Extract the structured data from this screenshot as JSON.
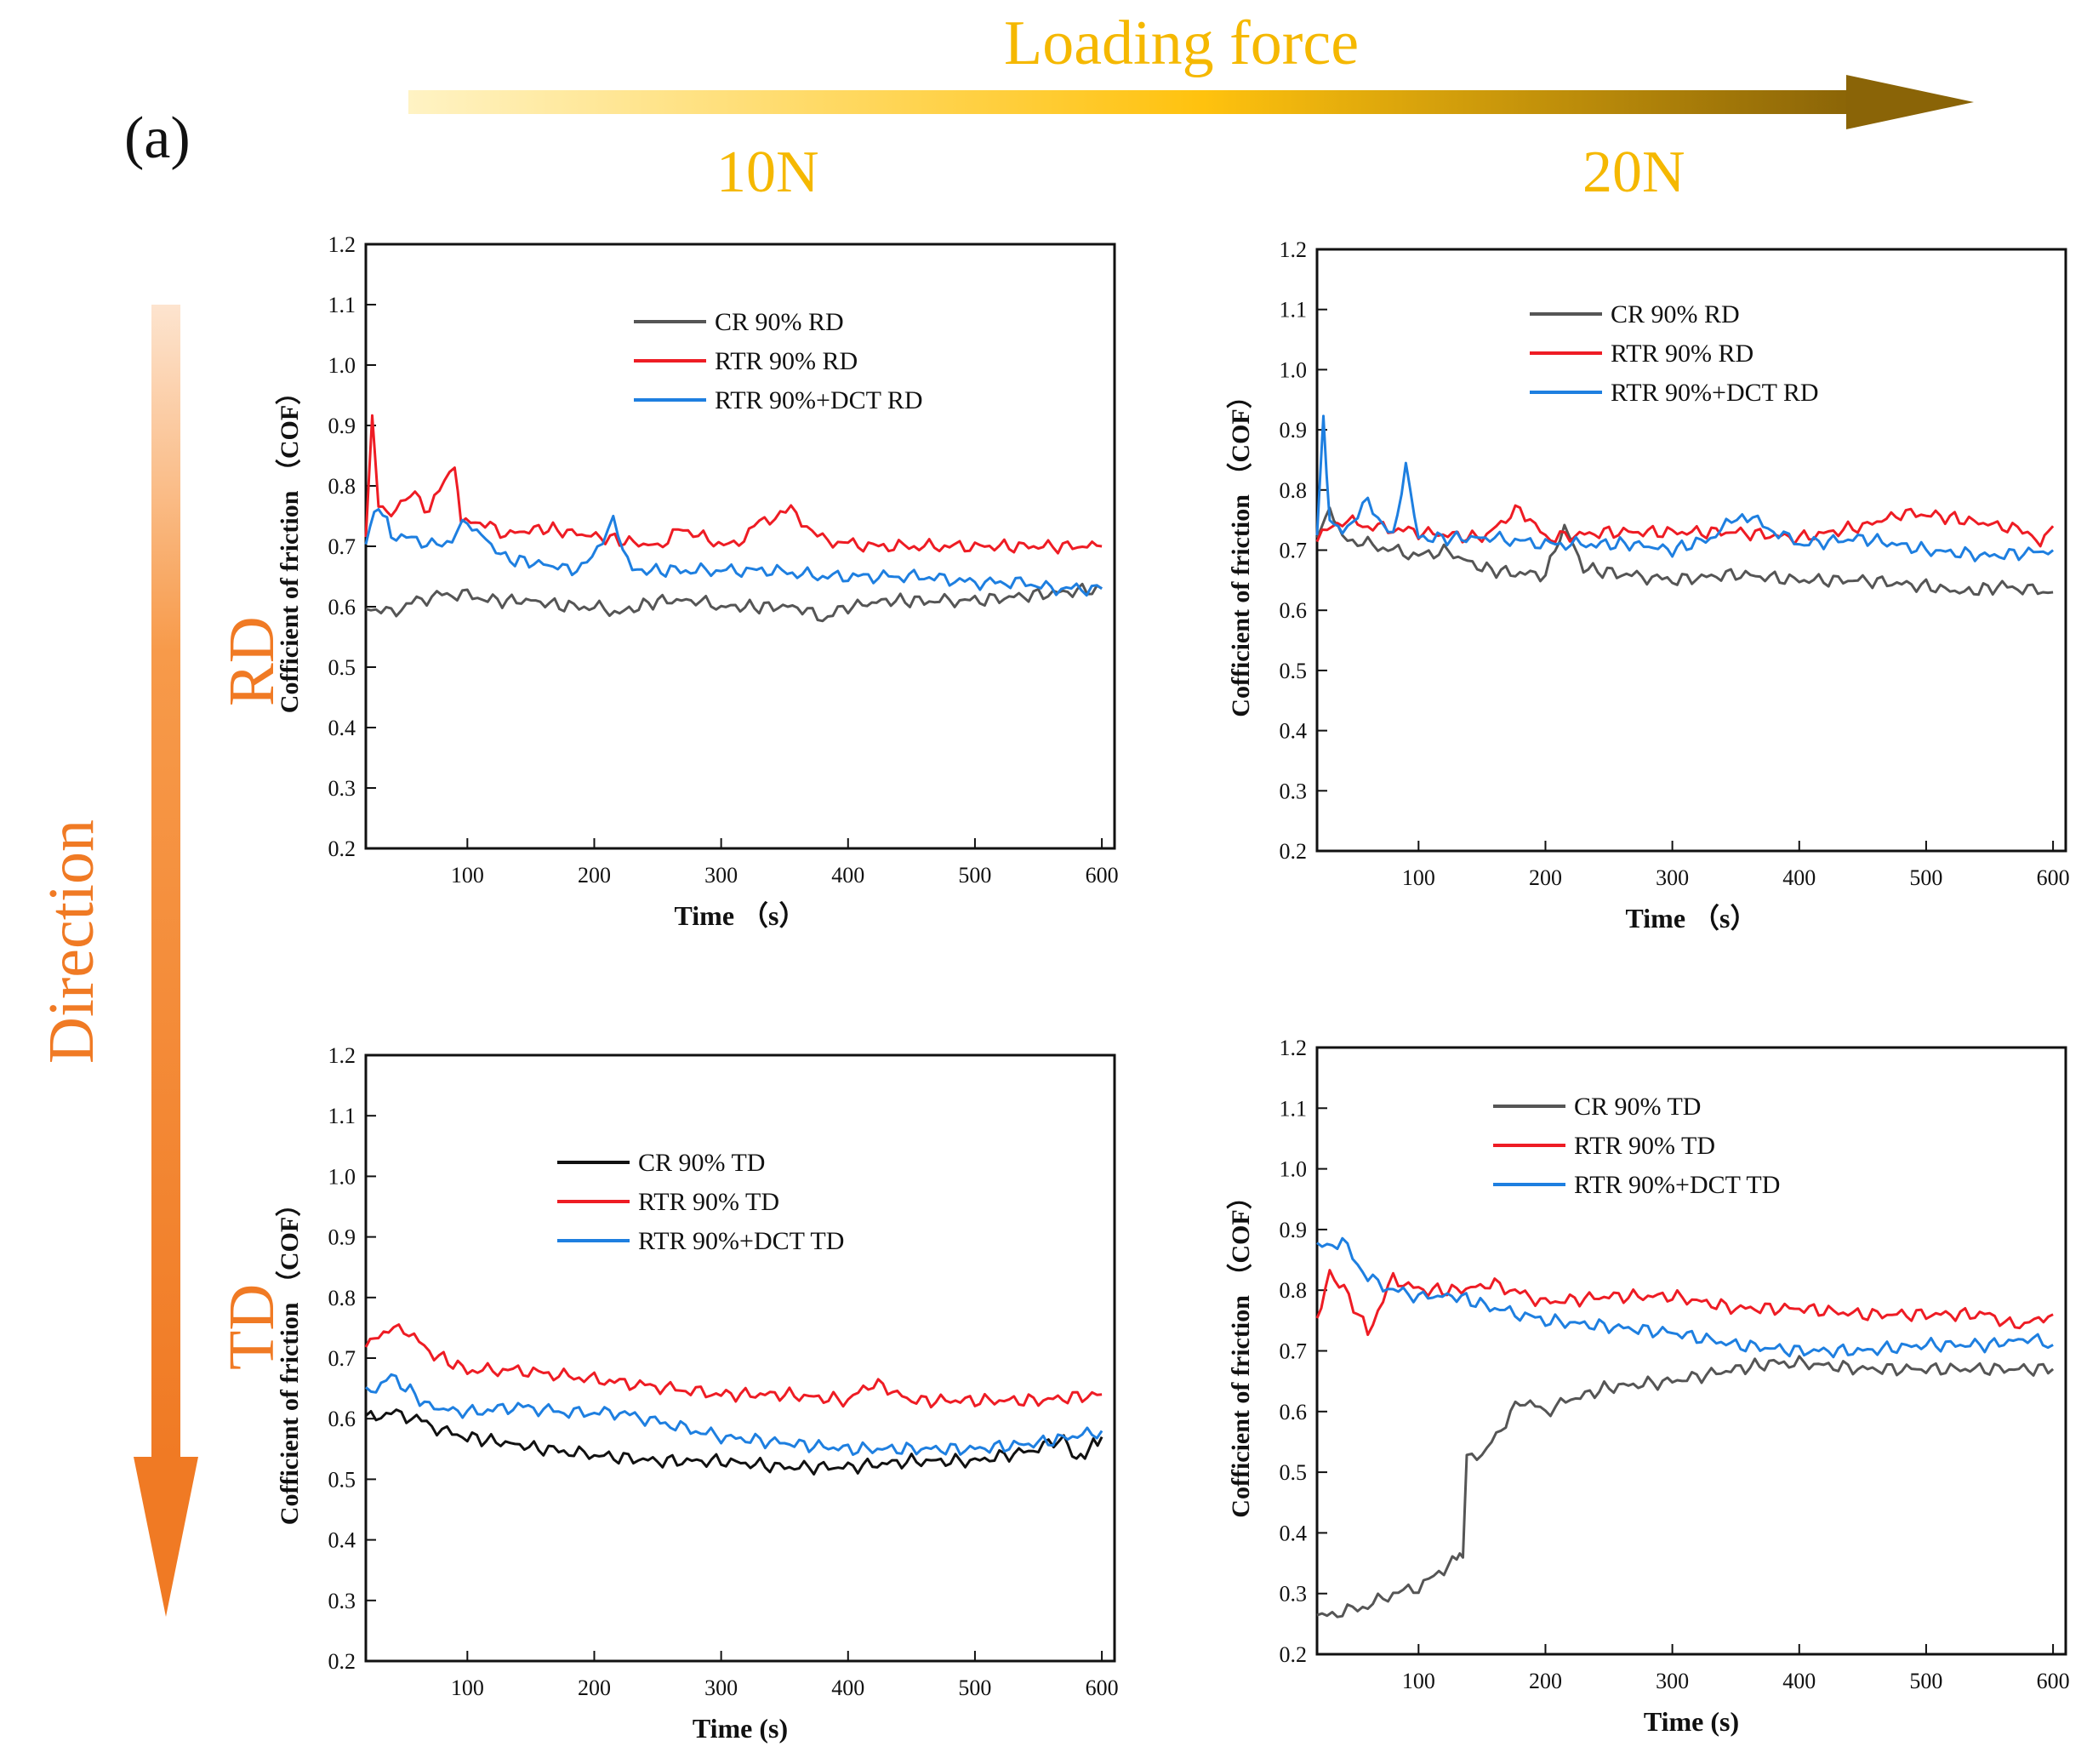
{
  "figure": {
    "panel_label": "(a)",
    "loading_title": "Loading force",
    "force_levels": [
      "10N",
      "20N"
    ],
    "direction_title": "Direction",
    "directions": [
      "RD",
      "TD"
    ],
    "colors": {
      "gold": "#f5b800",
      "orange": "#f07a24",
      "cr_gray": "#555555",
      "cr_black": "#111111",
      "rtr_red": "#ee1c24",
      "dct_blue": "#1e7fe0"
    }
  },
  "chart_data": [
    {
      "type": "line",
      "title": "10N RD",
      "xlabel": "Time （s）",
      "ylabel": "Cofficient of friction （COF）",
      "xlim": [
        20,
        610
      ],
      "ylim": [
        0.2,
        1.2
      ],
      "xticks": [
        "100",
        "200",
        "300",
        "400",
        "500",
        "600"
      ],
      "yticks": [
        "0.2",
        "0.3",
        "0.4",
        "0.5",
        "0.6",
        "0.7",
        "0.8",
        "0.9",
        "1.0",
        "1.1",
        "1.2"
      ],
      "legend": "top-right",
      "series": [
        {
          "name": "CR 90% RD",
          "color": "#555555",
          "x": [
            20,
            40,
            60,
            80,
            100,
            120,
            150,
            180,
            200,
            220,
            250,
            280,
            300,
            330,
            360,
            380,
            400,
            430,
            460,
            500,
            550,
            600
          ],
          "y": [
            0.6,
            0.59,
            0.61,
            0.62,
            0.62,
            0.61,
            0.61,
            0.6,
            0.6,
            0.59,
            0.61,
            0.61,
            0.6,
            0.6,
            0.6,
            0.58,
            0.6,
            0.61,
            0.61,
            0.61,
            0.62,
            0.63
          ]
        },
        {
          "name": "RTR 90% RD",
          "color": "#ee1c24",
          "x": [
            20,
            25,
            30,
            40,
            55,
            70,
            90,
            95,
            110,
            130,
            160,
            190,
            220,
            250,
            270,
            290,
            310,
            330,
            355,
            380,
            420,
            460,
            500,
            550,
            600
          ],
          "y": [
            0.72,
            0.91,
            0.77,
            0.75,
            0.79,
            0.76,
            0.84,
            0.74,
            0.74,
            0.72,
            0.73,
            0.72,
            0.71,
            0.7,
            0.73,
            0.71,
            0.7,
            0.74,
            0.76,
            0.71,
            0.7,
            0.7,
            0.7,
            0.7,
            0.7
          ]
        },
        {
          "name": "RTR 90%+DCT RD",
          "color": "#1e7fe0",
          "x": [
            20,
            30,
            40,
            60,
            80,
            100,
            130,
            160,
            190,
            215,
            230,
            260,
            300,
            340,
            380,
            420,
            460,
            500,
            540,
            560,
            580,
            600
          ],
          "y": [
            0.71,
            0.77,
            0.72,
            0.71,
            0.7,
            0.74,
            0.68,
            0.67,
            0.66,
            0.74,
            0.66,
            0.66,
            0.66,
            0.66,
            0.65,
            0.65,
            0.65,
            0.64,
            0.64,
            0.63,
            0.63,
            0.63
          ]
        }
      ]
    },
    {
      "type": "line",
      "title": "20N RD",
      "xlabel": "Time （s）",
      "ylabel": "Cofficient of friction （COF）",
      "xlim": [
        20,
        610
      ],
      "ylim": [
        0.2,
        1.2
      ],
      "xticks": [
        "100",
        "200",
        "300",
        "400",
        "500",
        "600"
      ],
      "yticks": [
        "0.2",
        "0.3",
        "0.4",
        "0.5",
        "0.6",
        "0.7",
        "0.8",
        "0.9",
        "1.0",
        "1.1",
        "1.2"
      ],
      "legend": "top-right",
      "series": [
        {
          "name": "CR 90% RD",
          "color": "#555555",
          "x": [
            20,
            30,
            40,
            60,
            80,
            100,
            120,
            150,
            180,
            200,
            215,
            230,
            260,
            300,
            350,
            400,
            450,
            500,
            530,
            560,
            600
          ],
          "y": [
            0.72,
            0.77,
            0.72,
            0.71,
            0.7,
            0.69,
            0.7,
            0.67,
            0.66,
            0.66,
            0.74,
            0.67,
            0.66,
            0.65,
            0.66,
            0.65,
            0.65,
            0.64,
            0.63,
            0.64,
            0.63
          ]
        },
        {
          "name": "RTR 90% RD",
          "color": "#ee1c24",
          "x": [
            20,
            40,
            60,
            100,
            150,
            180,
            200,
            250,
            300,
            350,
            400,
            450,
            480,
            500,
            530,
            560,
            580,
            590,
            600
          ],
          "y": [
            0.72,
            0.75,
            0.74,
            0.73,
            0.72,
            0.77,
            0.72,
            0.73,
            0.73,
            0.73,
            0.72,
            0.74,
            0.76,
            0.76,
            0.75,
            0.74,
            0.73,
            0.71,
            0.74
          ]
        },
        {
          "name": "RTR 90%+DCT  RD",
          "color": "#1e7fe0",
          "x": [
            20,
            25,
            30,
            40,
            60,
            80,
            90,
            100,
            130,
            160,
            200,
            240,
            270,
            300,
            330,
            355,
            400,
            450,
            500,
            550,
            600
          ],
          "y": [
            0.72,
            0.92,
            0.75,
            0.73,
            0.78,
            0.72,
            0.84,
            0.72,
            0.72,
            0.72,
            0.71,
            0.71,
            0.71,
            0.7,
            0.72,
            0.76,
            0.71,
            0.72,
            0.7,
            0.69,
            0.7
          ]
        }
      ]
    },
    {
      "type": "line",
      "title": "10N TD",
      "xlabel": "Time (s)",
      "ylabel": "Cofficient of friction （COF）",
      "xlim": [
        20,
        610
      ],
      "ylim": [
        0.2,
        1.2
      ],
      "xticks": [
        "100",
        "200",
        "300",
        "400",
        "500",
        "600"
      ],
      "yticks": [
        "0.2",
        "0.3",
        "0.4",
        "0.5",
        "0.6",
        "0.7",
        "0.8",
        "0.9",
        "1.0",
        "1.1",
        "1.2"
      ],
      "legend": "top-right",
      "series": [
        {
          "name": "CR 90% TD",
          "color": "#111111",
          "x": [
            20,
            40,
            60,
            80,
            100,
            130,
            160,
            200,
            250,
            300,
            350,
            400,
            450,
            500,
            550,
            570,
            580,
            590,
            600
          ],
          "y": [
            0.6,
            0.61,
            0.6,
            0.58,
            0.57,
            0.56,
            0.55,
            0.54,
            0.53,
            0.53,
            0.52,
            0.52,
            0.53,
            0.53,
            0.55,
            0.57,
            0.53,
            0.55,
            0.57
          ]
        },
        {
          "name": "RTR 90% TD",
          "color": "#ee1c24",
          "x": [
            20,
            30,
            50,
            70,
            100,
            140,
            180,
            220,
            260,
            300,
            350,
            400,
            420,
            450,
            500,
            550,
            600
          ],
          "y": [
            0.72,
            0.74,
            0.75,
            0.71,
            0.68,
            0.68,
            0.67,
            0.66,
            0.65,
            0.64,
            0.64,
            0.63,
            0.66,
            0.63,
            0.63,
            0.63,
            0.64
          ]
        },
        {
          "name": "RTR 90%+DCT TD",
          "color": "#1e7fe0",
          "x": [
            20,
            40,
            70,
            100,
            140,
            180,
            220,
            260,
            300,
            350,
            400,
            450,
            500,
            550,
            600
          ],
          "y": [
            0.64,
            0.67,
            0.62,
            0.61,
            0.62,
            0.61,
            0.61,
            0.59,
            0.57,
            0.56,
            0.55,
            0.55,
            0.55,
            0.56,
            0.58
          ]
        }
      ]
    },
    {
      "type": "line",
      "title": "20N TD",
      "xlabel": "Time (s)",
      "ylabel": "Cofficient of friction （COF）",
      "xlim": [
        20,
        610
      ],
      "ylim": [
        0.2,
        1.2
      ],
      "xticks": [
        "100",
        "200",
        "300",
        "400",
        "500",
        "600"
      ],
      "yticks": [
        "0.2",
        "0.3",
        "0.4",
        "0.5",
        "0.6",
        "0.7",
        "0.8",
        "0.9",
        "1.0",
        "1.1",
        "1.2"
      ],
      "legend": "top-right",
      "series": [
        {
          "name": "CR 90% TD",
          "color": "#555555",
          "x": [
            20,
            40,
            60,
            80,
            100,
            120,
            130,
            135,
            138,
            150,
            165,
            180,
            200,
            220,
            250,
            300,
            350,
            380,
            400,
            450,
            500,
            550,
            600
          ],
          "y": [
            0.26,
            0.27,
            0.28,
            0.3,
            0.31,
            0.34,
            0.36,
            0.37,
            0.52,
            0.53,
            0.57,
            0.62,
            0.6,
            0.62,
            0.64,
            0.65,
            0.67,
            0.68,
            0.68,
            0.67,
            0.67,
            0.67,
            0.67
          ]
        },
        {
          "name": "RTR 90% TD",
          "color": "#ee1c24",
          "x": [
            20,
            30,
            45,
            60,
            80,
            100,
            130,
            160,
            200,
            250,
            300,
            350,
            400,
            450,
            500,
            550,
            570,
            600
          ],
          "y": [
            0.75,
            0.83,
            0.79,
            0.73,
            0.82,
            0.8,
            0.8,
            0.81,
            0.78,
            0.79,
            0.79,
            0.77,
            0.77,
            0.76,
            0.76,
            0.76,
            0.74,
            0.76
          ]
        },
        {
          "name": "RTR 90%+DCT TD",
          "color": "#1e7fe0",
          "x": [
            20,
            40,
            60,
            80,
            100,
            130,
            160,
            200,
            250,
            300,
            350,
            400,
            450,
            500,
            550,
            580,
            600
          ],
          "y": [
            0.87,
            0.88,
            0.82,
            0.8,
            0.79,
            0.79,
            0.77,
            0.75,
            0.74,
            0.73,
            0.71,
            0.7,
            0.7,
            0.71,
            0.71,
            0.72,
            0.71
          ]
        }
      ]
    }
  ]
}
